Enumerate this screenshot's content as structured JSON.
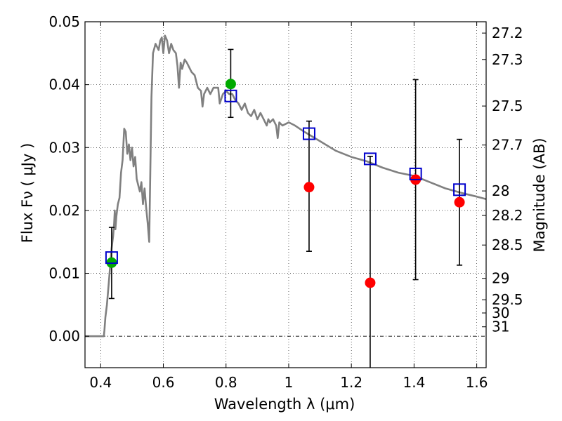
{
  "chart_data": {
    "type": "scatter",
    "xlabel": "Wavelength  λ (μm)",
    "ylabel": "Flux  Fν  ( μJy )",
    "y2label": "Magnitude (AB)",
    "xlim": [
      0.35,
      1.63
    ],
    "ylim": [
      -0.005,
      0.05
    ],
    "x_ticks": [
      0.4,
      0.6,
      0.8,
      1.0,
      1.2,
      1.4,
      1.6
    ],
    "x_tick_labels": [
      "0.4",
      "0.6",
      "0.8",
      "1",
      "1.2",
      "1.4",
      "1.6"
    ],
    "y_ticks": [
      0.0,
      0.01,
      0.02,
      0.03,
      0.04,
      0.05
    ],
    "y_tick_labels": [
      "0.00",
      "0.01",
      "0.02",
      "0.03",
      "0.04",
      "0.05"
    ],
    "mag_ticks": [
      {
        "label": "27.2",
        "flux": 0.0482
      },
      {
        "label": "27.3",
        "flux": 0.044
      },
      {
        "label": "27.5",
        "flux": 0.0366
      },
      {
        "label": "27.7",
        "flux": 0.0304
      },
      {
        "label": "28",
        "flux": 0.0231
      },
      {
        "label": "28.2",
        "flux": 0.0192
      },
      {
        "label": "28.5",
        "flux": 0.0145
      },
      {
        "label": "29",
        "flux": 0.0092
      },
      {
        "label": "29.5",
        "flux": 0.0058
      },
      {
        "label": "30",
        "flux": 0.0037
      },
      {
        "label": "31",
        "flux": 0.0015
      }
    ],
    "grid": true,
    "model_sed": {
      "color": "#808080",
      "points": [
        [
          0.35,
          0.0
        ],
        [
          0.41,
          0.0
        ],
        [
          0.412,
          0.001
        ],
        [
          0.415,
          0.003
        ],
        [
          0.42,
          0.005
        ],
        [
          0.425,
          0.008
        ],
        [
          0.43,
          0.011
        ],
        [
          0.435,
          0.014
        ],
        [
          0.44,
          0.016
        ],
        [
          0.443,
          0.018
        ],
        [
          0.445,
          0.02
        ],
        [
          0.447,
          0.017
        ],
        [
          0.45,
          0.019
        ],
        [
          0.455,
          0.021
        ],
        [
          0.46,
          0.022
        ],
        [
          0.465,
          0.026
        ],
        [
          0.47,
          0.028
        ],
        [
          0.475,
          0.033
        ],
        [
          0.48,
          0.0325
        ],
        [
          0.485,
          0.029
        ],
        [
          0.49,
          0.0305
        ],
        [
          0.495,
          0.028
        ],
        [
          0.5,
          0.03
        ],
        [
          0.505,
          0.027
        ],
        [
          0.51,
          0.0285
        ],
        [
          0.515,
          0.025
        ],
        [
          0.52,
          0.024
        ],
        [
          0.525,
          0.023
        ],
        [
          0.53,
          0.0245
        ],
        [
          0.535,
          0.021
        ],
        [
          0.54,
          0.0235
        ],
        [
          0.545,
          0.0205
        ],
        [
          0.55,
          0.018
        ],
        [
          0.555,
          0.015
        ],
        [
          0.558,
          0.025
        ],
        [
          0.562,
          0.038
        ],
        [
          0.567,
          0.045
        ],
        [
          0.575,
          0.0465
        ],
        [
          0.585,
          0.0455
        ],
        [
          0.59,
          0.047
        ],
        [
          0.595,
          0.0475
        ],
        [
          0.6,
          0.045
        ],
        [
          0.605,
          0.0478
        ],
        [
          0.612,
          0.047
        ],
        [
          0.618,
          0.045
        ],
        [
          0.625,
          0.0465
        ],
        [
          0.632,
          0.0455
        ],
        [
          0.64,
          0.045
        ],
        [
          0.645,
          0.043
        ],
        [
          0.65,
          0.0395
        ],
        [
          0.655,
          0.0435
        ],
        [
          0.66,
          0.0425
        ],
        [
          0.668,
          0.044
        ],
        [
          0.675,
          0.0435
        ],
        [
          0.69,
          0.042
        ],
        [
          0.7,
          0.0415
        ],
        [
          0.71,
          0.0395
        ],
        [
          0.72,
          0.039
        ],
        [
          0.725,
          0.0365
        ],
        [
          0.73,
          0.0385
        ],
        [
          0.74,
          0.0395
        ],
        [
          0.75,
          0.0385
        ],
        [
          0.76,
          0.0395
        ],
        [
          0.775,
          0.0395
        ],
        [
          0.78,
          0.037
        ],
        [
          0.79,
          0.0385
        ],
        [
          0.8,
          0.039
        ],
        [
          0.81,
          0.0385
        ],
        [
          0.82,
          0.0385
        ],
        [
          0.83,
          0.0375
        ],
        [
          0.84,
          0.037
        ],
        [
          0.85,
          0.036
        ],
        [
          0.86,
          0.037
        ],
        [
          0.87,
          0.0355
        ],
        [
          0.88,
          0.035
        ],
        [
          0.89,
          0.036
        ],
        [
          0.9,
          0.0345
        ],
        [
          0.91,
          0.0355
        ],
        [
          0.92,
          0.0345
        ],
        [
          0.93,
          0.0335
        ],
        [
          0.935,
          0.0345
        ],
        [
          0.94,
          0.034
        ],
        [
          0.95,
          0.0345
        ],
        [
          0.96,
          0.0335
        ],
        [
          0.965,
          0.0315
        ],
        [
          0.97,
          0.034
        ],
        [
          0.98,
          0.0335
        ],
        [
          1.0,
          0.034
        ],
        [
          1.02,
          0.0335
        ],
        [
          1.05,
          0.0325
        ],
        [
          1.1,
          0.031
        ],
        [
          1.15,
          0.0295
        ],
        [
          1.2,
          0.0285
        ],
        [
          1.25,
          0.0278
        ],
        [
          1.3,
          0.0268
        ],
        [
          1.35,
          0.026
        ],
        [
          1.4,
          0.0255
        ],
        [
          1.45,
          0.0245
        ],
        [
          1.5,
          0.0235
        ],
        [
          1.55,
          0.0228
        ],
        [
          1.6,
          0.0222
        ],
        [
          1.63,
          0.0218
        ]
      ]
    },
    "model_fluxes": {
      "color": "#0000cc",
      "marker": "open-square",
      "points": [
        [
          0.435,
          0.0125
        ],
        [
          0.815,
          0.0382
        ],
        [
          1.065,
          0.0322
        ],
        [
          1.26,
          0.0282
        ],
        [
          1.405,
          0.0258
        ],
        [
          1.545,
          0.0233
        ]
      ]
    },
    "detections": {
      "color": "#00aa00",
      "marker": "filled-circle",
      "points": [
        {
          "x": 0.435,
          "y": 0.0117,
          "yerr_low": 0.006,
          "yerr_high": 0.0173
        },
        {
          "x": 0.815,
          "y": 0.0401,
          "yerr_low": 0.0348,
          "yerr_high": 0.0456
        }
      ]
    },
    "upper_points": {
      "color": "#ff0000",
      "marker": "filled-circle",
      "points": [
        {
          "x": 1.065,
          "y": 0.0237,
          "yerr_low": 0.0135,
          "yerr_high": 0.0342
        },
        {
          "x": 1.26,
          "y": 0.0085,
          "yerr_low": -0.005,
          "yerr_high": 0.0286
        },
        {
          "x": 1.405,
          "y": 0.0249,
          "yerr_low": 0.009,
          "yerr_high": 0.0408
        },
        {
          "x": 1.545,
          "y": 0.0213,
          "yerr_low": 0.0113,
          "yerr_high": 0.0313
        }
      ]
    }
  }
}
